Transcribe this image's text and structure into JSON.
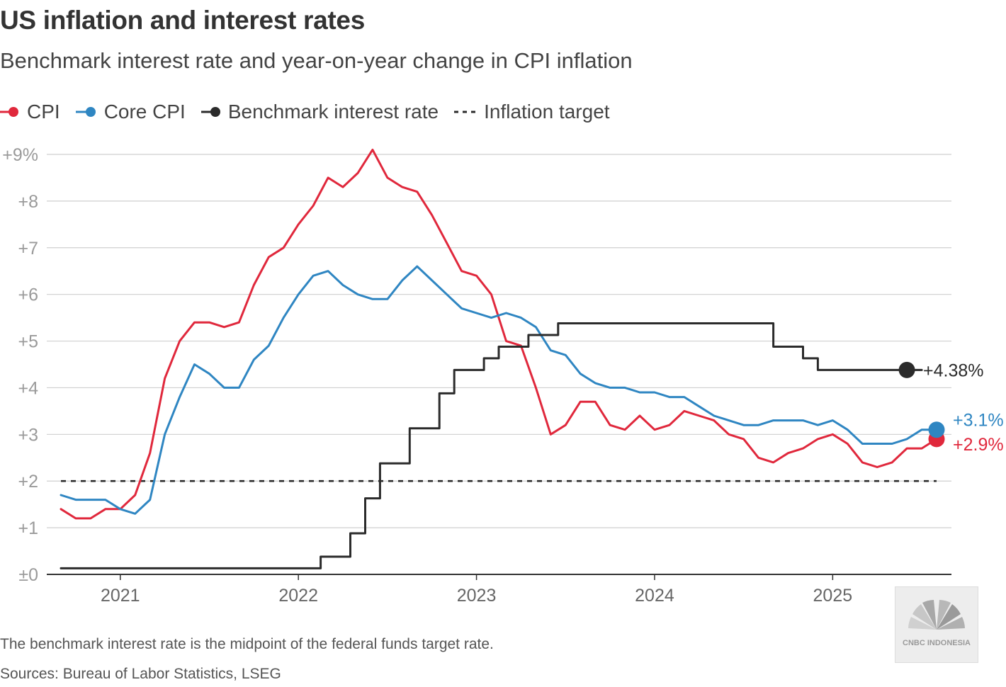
{
  "title": "US inflation and interest rates",
  "subtitle": "Benchmark interest rate and year-on-year change in CPI inflation",
  "legend": [
    {
      "label": "CPI",
      "color": "#e0283c",
      "marker": "dot"
    },
    {
      "label": "Core CPI",
      "color": "#2f86c2",
      "marker": "dot"
    },
    {
      "label": "Benchmark interest rate",
      "color": "#2b2b2b",
      "marker": "dot"
    },
    {
      "label": "Inflation target",
      "color": "#2b2b2b",
      "marker": "dash"
    }
  ],
  "footnote": "The benchmark interest rate is the midpoint of the federal funds target rate.",
  "sources": "Sources: Bureau of Labor Statistics, LSEG",
  "watermark": {
    "icon": "peacock-logo-icon",
    "text": "CNBC INDONESIA"
  },
  "chart_data": {
    "type": "line",
    "title": "US inflation and interest rates",
    "x_unit": "month index (0 = Aug 2020)",
    "xlim": [
      0,
      59
    ],
    "ylim": [
      0,
      9
    ],
    "yticks": [
      {
        "value": 0,
        "label": "±0"
      },
      {
        "value": 1,
        "label": "+1"
      },
      {
        "value": 2,
        "label": "+2"
      },
      {
        "value": 3,
        "label": "+3"
      },
      {
        "value": 4,
        "label": "+4"
      },
      {
        "value": 5,
        "label": "+5"
      },
      {
        "value": 6,
        "label": "+6"
      },
      {
        "value": 7,
        "label": "+7"
      },
      {
        "value": 8,
        "label": "+8"
      },
      {
        "value": 9,
        "label": "+9%"
      }
    ],
    "xticks": [
      {
        "value": 4,
        "label": "2021"
      },
      {
        "value": 16,
        "label": "2022"
      },
      {
        "value": 28,
        "label": "2023"
      },
      {
        "value": 40,
        "label": "2024"
      },
      {
        "value": 52,
        "label": "2025"
      }
    ],
    "grid": true,
    "inflation_target": 2,
    "series": [
      {
        "name": "CPI",
        "color": "#e0283c",
        "kind": "line",
        "end_label": "+2.9%",
        "x": [
          0,
          1,
          2,
          3,
          4,
          5,
          6,
          7,
          8,
          9,
          10,
          11,
          12,
          13,
          14,
          15,
          16,
          17,
          18,
          19,
          20,
          21,
          22,
          23,
          24,
          25,
          26,
          27,
          28,
          29,
          30,
          31,
          32,
          33,
          34,
          35,
          36,
          37,
          38,
          39,
          40,
          41,
          42,
          43,
          44,
          45,
          46,
          47,
          48,
          49,
          50,
          51,
          52,
          53,
          54,
          55,
          56,
          57,
          58,
          59
        ],
        "values": [
          1.4,
          1.2,
          1.2,
          1.4,
          1.4,
          1.7,
          2.6,
          4.2,
          5.0,
          5.4,
          5.4,
          5.3,
          5.4,
          6.2,
          6.8,
          7.0,
          7.5,
          7.9,
          8.5,
          8.3,
          8.6,
          9.1,
          8.5,
          8.3,
          8.2,
          7.7,
          7.1,
          6.5,
          6.4,
          6.0,
          5.0,
          4.9,
          4.0,
          3.0,
          3.2,
          3.7,
          3.7,
          3.2,
          3.1,
          3.4,
          3.1,
          3.2,
          3.5,
          3.4,
          3.3,
          3.0,
          2.9,
          2.5,
          2.4,
          2.6,
          2.7,
          2.9,
          3.0,
          2.8,
          2.4,
          2.3,
          2.4,
          2.7,
          2.7,
          2.9
        ]
      },
      {
        "name": "Core CPI",
        "color": "#2f86c2",
        "kind": "line",
        "end_label": "+3.1%",
        "x": [
          0,
          1,
          2,
          3,
          4,
          5,
          6,
          7,
          8,
          9,
          10,
          11,
          12,
          13,
          14,
          15,
          16,
          17,
          18,
          19,
          20,
          21,
          22,
          23,
          24,
          25,
          26,
          27,
          28,
          29,
          30,
          31,
          32,
          33,
          34,
          35,
          36,
          37,
          38,
          39,
          40,
          41,
          42,
          43,
          44,
          45,
          46,
          47,
          48,
          49,
          50,
          51,
          52,
          53,
          54,
          55,
          56,
          57,
          58,
          59
        ],
        "values": [
          1.7,
          1.6,
          1.6,
          1.6,
          1.4,
          1.3,
          1.6,
          3.0,
          3.8,
          4.5,
          4.3,
          4.0,
          4.0,
          4.6,
          4.9,
          5.5,
          6.0,
          6.4,
          6.5,
          6.2,
          6.0,
          5.9,
          5.9,
          6.3,
          6.6,
          6.3,
          6.0,
          5.7,
          5.6,
          5.5,
          5.6,
          5.5,
          5.3,
          4.8,
          4.7,
          4.3,
          4.1,
          4.0,
          4.0,
          3.9,
          3.9,
          3.8,
          3.8,
          3.6,
          3.4,
          3.3,
          3.2,
          3.2,
          3.3,
          3.3,
          3.3,
          3.2,
          3.3,
          3.1,
          2.8,
          2.8,
          2.8,
          2.9,
          3.1,
          3.1
        ]
      },
      {
        "name": "Benchmark interest rate",
        "color": "#2b2b2b",
        "kind": "step",
        "end_label": "+4.38%",
        "x": [
          0,
          17.5,
          19.5,
          20.5,
          21.5,
          23.5,
          25.5,
          26.5,
          28.5,
          29.5,
          31.5,
          33.5,
          48,
          50,
          51,
          58
        ],
        "values": [
          0.13,
          0.38,
          0.88,
          1.63,
          2.38,
          3.13,
          3.88,
          4.38,
          4.63,
          4.88,
          5.13,
          5.38,
          4.88,
          4.63,
          4.38,
          4.38
        ]
      }
    ]
  }
}
